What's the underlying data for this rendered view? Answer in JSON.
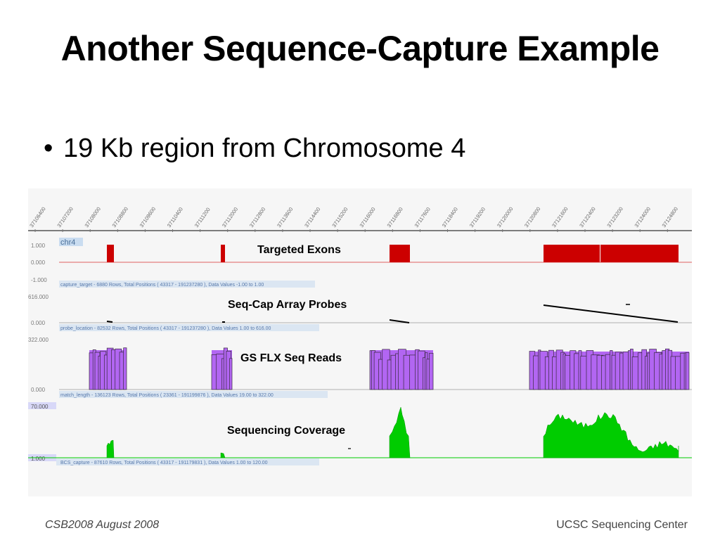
{
  "slide": {
    "title": "Another Sequence-Capture Example",
    "bullet": "19 Kb region from Chromosome 4",
    "footer_left": "CSB2008  August 2008",
    "footer_right": "UCSC Sequencing Center"
  },
  "colors": {
    "exon": "#cc0000",
    "probe": "#000000",
    "reads_fill": "#b266f2",
    "reads_edge": "#3a2a40",
    "coverage": "#00cc00",
    "axis_label": "#7a7a7a",
    "panel_label_bg": "#c9dcf0"
  },
  "ruler": {
    "ticks": [
      "37106400",
      "37107200",
      "37108000",
      "37108800",
      "37109600",
      "37110400",
      "37111200",
      "37112000",
      "37112800",
      "37113600",
      "37114400",
      "37115200",
      "37116000",
      "37116800",
      "37117600",
      "37118400",
      "37119200",
      "37120000",
      "37120800",
      "37121600",
      "37122400",
      "37123200",
      "37124000",
      "37124800"
    ]
  },
  "tracks": {
    "exons": {
      "label": "Targeted Exons",
      "chrom_label": "chr4",
      "y_top": "1.000",
      "y_mid": "0.000",
      "y_bottom": "-1.000",
      "info": "capture_target - 6880 Rows, Total Positions ( 43317 - 191237280 ), Data Values -1.00 to 1.00"
    },
    "probes": {
      "label": "Seq-Cap Array Probes",
      "y_top": "616.000",
      "y_bottom": "0.000",
      "info": "probe_location - 82532 Rows, Total Positions ( 43317 - 191237280 ), Data Values 1.00 to 616.00"
    },
    "reads": {
      "label": "GS FLX Seq Reads",
      "y_top": "322.000",
      "y_bottom": "0.000",
      "info": "match_length - 136123 Rows, Total Positions ( 23361 - 191199876 ), Data Values 19.00 to 322.00"
    },
    "coverage": {
      "label": "Sequencing Coverage",
      "y_top": "70.000",
      "y_bottom": "1.000",
      "info": "BCS_capture - 87610 Rows, Total Positions ( 43317 - 191179831 ), Data Values 1.00 to 120.00"
    }
  }
}
